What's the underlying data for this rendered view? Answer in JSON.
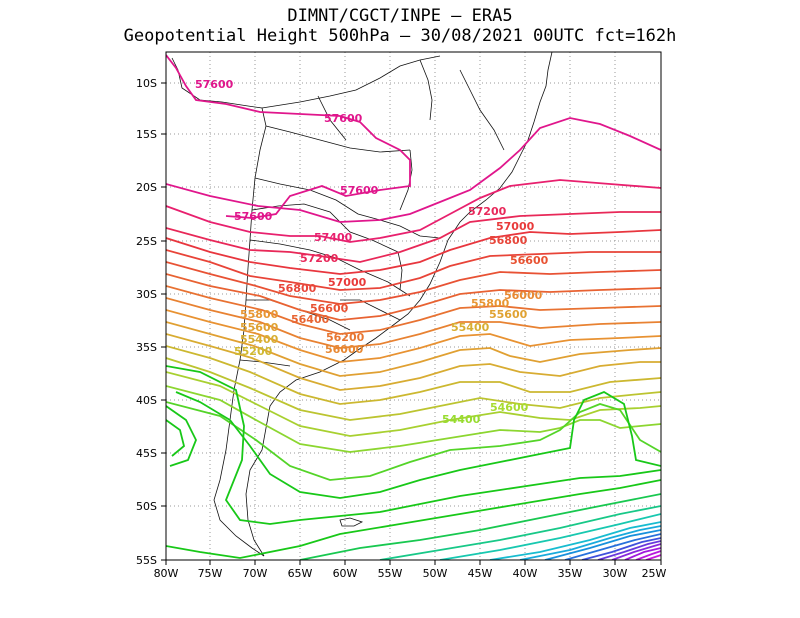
{
  "title": {
    "line1": "DIMNT/CGCT/INPE –  ERA5",
    "line2": "Geopotential Height 500hPa –  30/08/2021 00UTC fct=162h"
  },
  "axes": {
    "lat_labels": [
      "10S",
      "15S",
      "20S",
      "25S",
      "30S",
      "35S",
      "40S",
      "45S",
      "50S",
      "55S"
    ],
    "lon_labels": [
      "80W",
      "75W",
      "70W",
      "65W",
      "60W",
      "55W",
      "50W",
      "45W",
      "40W",
      "35W",
      "30W",
      "25W"
    ]
  },
  "map": {
    "lon_range": [
      -80,
      -25
    ],
    "lat_range": [
      -55,
      -8
    ],
    "gridlines": "dotted"
  },
  "contour_labels": [
    {
      "text": "57600",
      "color": "#e0168c"
    },
    {
      "text": "57600",
      "color": "#e0168c"
    },
    {
      "text": "57600",
      "color": "#e0168c"
    },
    {
      "text": "57600",
      "color": "#e0168c"
    },
    {
      "text": "57400",
      "color": "#e8206e"
    },
    {
      "text": "57200",
      "color": "#e8285a"
    },
    {
      "text": "57200",
      "color": "#e8285a"
    },
    {
      "text": "57000",
      "color": "#e83a3a"
    },
    {
      "text": "57000",
      "color": "#e83a3a"
    },
    {
      "text": "56800",
      "color": "#e8463a"
    },
    {
      "text": "56800",
      "color": "#e8463a"
    },
    {
      "text": "56600",
      "color": "#e85232"
    },
    {
      "text": "56600",
      "color": "#e85232"
    },
    {
      "text": "56400",
      "color": "#e86432"
    },
    {
      "text": "56200",
      "color": "#e87632"
    },
    {
      "text": "56000",
      "color": "#e88832"
    },
    {
      "text": "56000",
      "color": "#e88832"
    },
    {
      "text": "55800",
      "color": "#e89632"
    },
    {
      "text": "55800",
      "color": "#e89632"
    },
    {
      "text": "55600",
      "color": "#e0a232"
    },
    {
      "text": "55600",
      "color": "#e0a232"
    },
    {
      "text": "55400",
      "color": "#d8ae32"
    },
    {
      "text": "55400",
      "color": "#d8ae32"
    },
    {
      "text": "55200",
      "color": "#d0b830"
    },
    {
      "text": "54600",
      "color": "#a8dc30"
    },
    {
      "text": "54400",
      "color": "#98dc30"
    }
  ],
  "colors": {
    "pink": "#e0168c",
    "red": "#e83a3a",
    "orange": "#e88832",
    "yellow": "#d0c030",
    "lime": "#9cdc32",
    "green": "#18c818",
    "teal": "#18c8a0",
    "cyan": "#18b4dc",
    "blue": "#2864dc",
    "purple": "#a018dc"
  }
}
